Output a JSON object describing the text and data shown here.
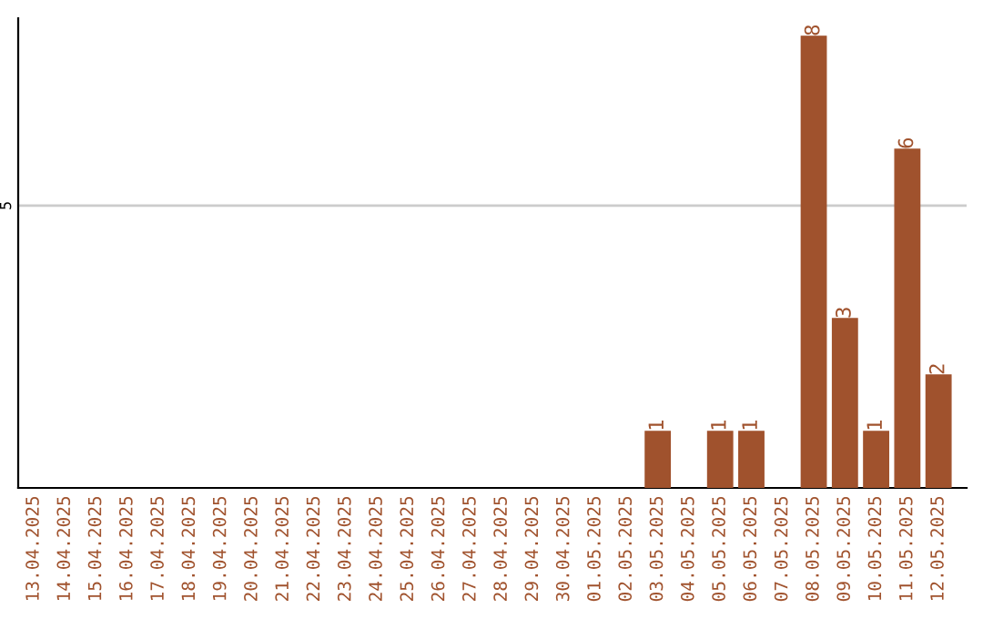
{
  "chart_data": {
    "type": "bar",
    "categories": [
      "13.04.2025",
      "14.04.2025",
      "15.04.2025",
      "16.04.2025",
      "17.04.2025",
      "18.04.2025",
      "19.04.2025",
      "20.04.2025",
      "21.04.2025",
      "22.04.2025",
      "23.04.2025",
      "24.04.2025",
      "25.04.2025",
      "26.04.2025",
      "27.04.2025",
      "28.04.2025",
      "29.04.2025",
      "30.04.2025",
      "01.05.2025",
      "02.05.2025",
      "03.05.2025",
      "04.05.2025",
      "05.05.2025",
      "06.05.2025",
      "07.05.2025",
      "08.05.2025",
      "09.05.2025",
      "10.05.2025",
      "11.05.2025",
      "12.05.2025"
    ],
    "values": [
      null,
      null,
      null,
      null,
      null,
      null,
      null,
      null,
      null,
      null,
      null,
      null,
      null,
      null,
      null,
      null,
      null,
      null,
      null,
      null,
      1,
      null,
      1,
      1,
      null,
      8,
      3,
      1,
      6,
      2
    ],
    "data_labels": true,
    "color": "#a0522d",
    "ref_lines": [
      {
        "axis": "y",
        "value": 5,
        "label": "5",
        "color": "#cccccc"
      }
    ]
  }
}
